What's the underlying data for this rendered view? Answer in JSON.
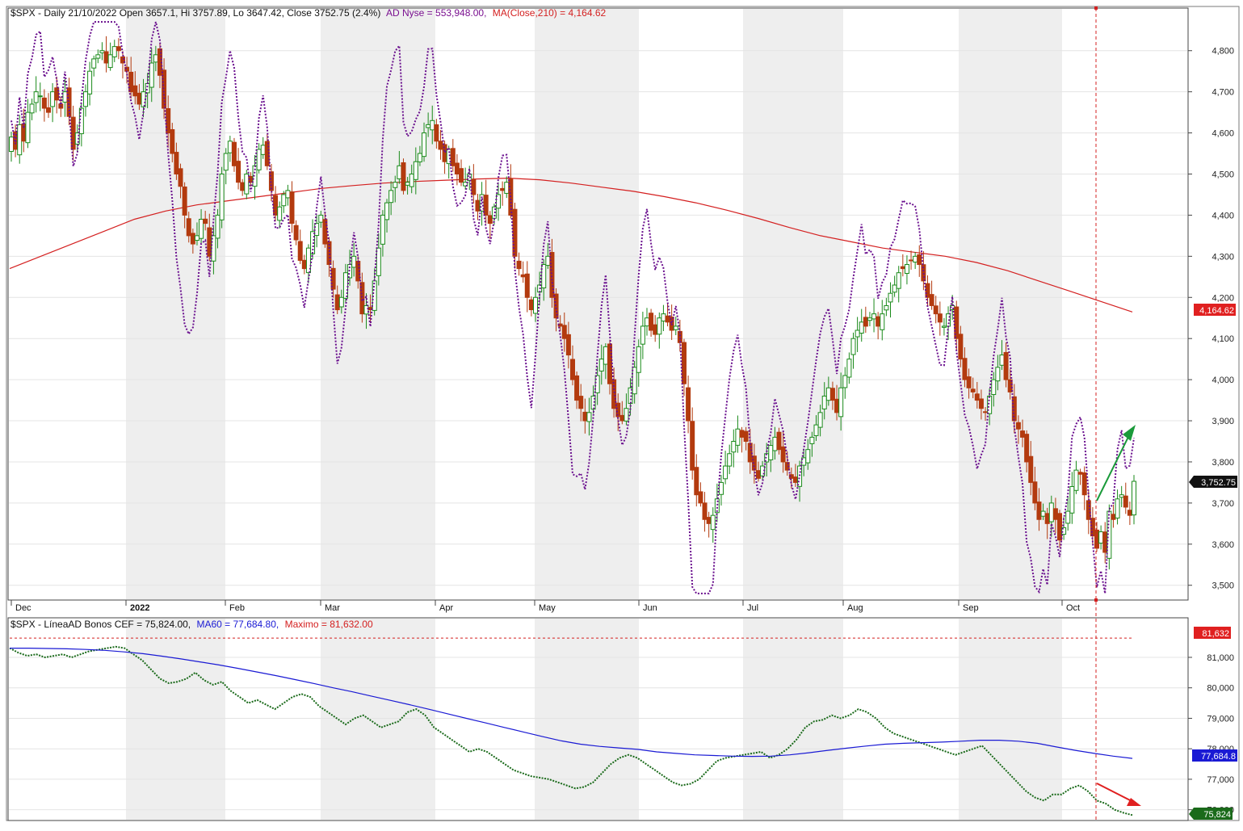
{
  "colors": {
    "up_candle": "#1a8a1a",
    "down_candle": "#b33a0e",
    "ad_line": "#6a0f8e",
    "ma210": "#d42020",
    "bonos_line": "#1a6a1a",
    "ma60": "#1a1ad4",
    "maximo": "#d42020",
    "price_tag": "#000000",
    "month_shade": "#eeeeee"
  },
  "upper_header": {
    "prefix": "$SPX - Daily 21/10/2022 Open 3657.1, Hi 3757.89, Lo 3647.42, Close 3752.75 (2.4%)",
    "ad": "AD Nyse = 553,948.00,",
    "ma": "MA(Close,210) = 4,164.62"
  },
  "lower_header": {
    "prefix": "$SPX - LíneaAD Bonos CEF = 75,824.00,",
    "ma60": "MA60 = 77,684.80,",
    "maximo": "Maximo = 81,632.00"
  },
  "chart_data": [
    {
      "type": "candlestick",
      "title": "$SPX - Daily 21/10/2022",
      "ylim": [
        3470,
        4880
      ],
      "y_ticks": [
        "3,500",
        "3,600",
        "3,700",
        "3,800",
        "3,900",
        "4,000",
        "4,100",
        "4,200",
        "4,300",
        "4,400",
        "4,500",
        "4,600",
        "4,700",
        "4,800"
      ],
      "y_tick_values": [
        3500,
        3600,
        3700,
        3800,
        3900,
        4000,
        4100,
        4200,
        4300,
        4400,
        4500,
        4600,
        4700,
        4800
      ],
      "x_labels": [
        "Dec",
        "2022",
        "Feb",
        "Mar",
        "Apr",
        "May",
        "Jun",
        "Jul",
        "Aug",
        "Sep",
        "Oct"
      ],
      "last_value_tags": {
        "close": "3,752.75",
        "ma210": "4,164.62"
      },
      "close_series": [
        4590,
        4560,
        4620,
        4580,
        4650,
        4670,
        4700,
        4690,
        4660,
        4650,
        4700,
        4680,
        4660,
        4700,
        4640,
        4560,
        4600,
        4660,
        4700,
        4750,
        4780,
        4790,
        4800,
        4770,
        4790,
        4810,
        4800,
        4770,
        4750,
        4700,
        4690,
        4670,
        4700,
        4720,
        4770,
        4790,
        4740,
        4660,
        4600,
        4550,
        4500,
        4470,
        4400,
        4350,
        4330,
        4350,
        4390,
        4380,
        4300,
        4350,
        4400,
        4500,
        4550,
        4580,
        4520,
        4480,
        4460,
        4500,
        4480,
        4520,
        4560,
        4570,
        4520,
        4460,
        4400,
        4420,
        4450,
        4460,
        4380,
        4340,
        4290,
        4270,
        4320,
        4360,
        4380,
        4400,
        4330,
        4280,
        4220,
        4170,
        4200,
        4260,
        4280,
        4300,
        4240,
        4160,
        4180,
        4170,
        4240,
        4320,
        4400,
        4430,
        4460,
        4480,
        4520,
        4460,
        4480,
        4500,
        4530,
        4550,
        4600,
        4620,
        4630,
        4580,
        4560,
        4530,
        4560,
        4520,
        4500,
        4480,
        4480,
        4500,
        4450,
        4410,
        4450,
        4400,
        4380,
        4420,
        4450,
        4460,
        4480,
        4400,
        4300,
        4270,
        4250,
        4200,
        4170,
        4200,
        4230,
        4280,
        4300,
        4200,
        4150,
        4130,
        4100,
        4060,
        4000,
        3950,
        3930,
        3900,
        3920,
        3960,
        4010,
        4050,
        4080,
        3990,
        3930,
        3910,
        3900,
        3930,
        3980,
        4030,
        4080,
        4130,
        4150,
        4120,
        4110,
        4150,
        4160,
        4140,
        4120,
        4130,
        4090,
        3990,
        3900,
        3780,
        3720,
        3700,
        3660,
        3650,
        3670,
        3710,
        3750,
        3790,
        3820,
        3850,
        3880,
        3860,
        3850,
        3800,
        3780,
        3760,
        3790,
        3820,
        3840,
        3860,
        3830,
        3800,
        3780,
        3760,
        3750,
        3790,
        3810,
        3830,
        3860,
        3890,
        3920,
        3960,
        3980,
        3950,
        3920,
        3980,
        4010,
        4050,
        4100,
        4120,
        4140,
        4130,
        4150,
        4160,
        4130,
        4160,
        4180,
        4210,
        4230,
        4260,
        4270,
        4280,
        4290,
        4300,
        4280,
        4240,
        4200,
        4180,
        4160,
        4140,
        4130,
        4160,
        4180,
        4100,
        4050,
        4000,
        3980,
        3970,
        3950,
        3930,
        3920,
        3960,
        4000,
        4030,
        4060,
        4000,
        3970,
        3900,
        3880,
        3860,
        3800,
        3750,
        3700,
        3660,
        3680,
        3650,
        3700,
        3660,
        3610,
        3640,
        3680,
        3740,
        3780,
        3770,
        3720,
        3660,
        3620,
        3590,
        3630,
        3580,
        3680,
        3660,
        3710,
        3720,
        3690,
        3670,
        3752.75
      ],
      "ad_nyse_series": "overlay — dotted line, right-hand portion values shown by shape only",
      "ma210_series": [
        4270,
        4300,
        4330,
        4360,
        4390,
        4410,
        4425,
        4435,
        4445,
        4455,
        4465,
        4472,
        4478,
        4482,
        4485,
        4488,
        4490,
        4486,
        4478,
        4468,
        4458,
        4445,
        4430,
        4412,
        4392,
        4370,
        4350,
        4335,
        4320,
        4310,
        4300,
        4285,
        4265,
        4240,
        4215,
        4190,
        4164.62
      ]
    },
    {
      "type": "line",
      "title": "$SPX - LíneaAD Bonos CEF",
      "ylim": [
        75700,
        81900
      ],
      "y_ticks": [
        "76,000",
        "77,000",
        "78,000",
        "79,000",
        "80,000",
        "81,000"
      ],
      "y_tick_values": [
        76000,
        77000,
        78000,
        79000,
        80000,
        81000
      ],
      "last_value_tags": {
        "bonos": "75,824",
        "ma60": "77,684.8",
        "maximo": "81,632"
      },
      "bonos_series": [
        81300,
        81150,
        81050,
        81100,
        81000,
        81050,
        81100,
        81000,
        81100,
        81200,
        81250,
        81300,
        81350,
        81300,
        81100,
        80900,
        80600,
        80300,
        80150,
        80200,
        80300,
        80500,
        80250,
        80100,
        80200,
        79900,
        79700,
        79500,
        79600,
        79450,
        79300,
        79500,
        79700,
        79800,
        79700,
        79400,
        79200,
        79000,
        78800,
        79000,
        79100,
        78900,
        78700,
        78800,
        78900,
        79200,
        79300,
        79100,
        78700,
        78500,
        78300,
        78100,
        77900,
        78000,
        77900,
        77700,
        77500,
        77300,
        77200,
        77100,
        77050,
        77000,
        76900,
        76800,
        76700,
        76750,
        76900,
        77200,
        77500,
        77700,
        77800,
        77700,
        77500,
        77300,
        77100,
        76900,
        76800,
        76850,
        77000,
        77300,
        77600,
        77700,
        77750,
        77800,
        77850,
        77900,
        77700,
        77800,
        78000,
        78300,
        78700,
        78900,
        78950,
        79100,
        79000,
        79100,
        79300,
        79200,
        79000,
        78700,
        78500,
        78400,
        78300,
        78200,
        78100,
        78000,
        77900,
        77800,
        77900,
        78000,
        78100,
        77800,
        77500,
        77200,
        76900,
        76600,
        76400,
        76300,
        76500,
        76500,
        76700,
        76800,
        76600,
        76300,
        76200,
        76000,
        75900,
        75824
      ],
      "ma60_series": [
        81300,
        81300,
        81290,
        81280,
        81260,
        81230,
        81180,
        81120,
        81040,
        80950,
        80850,
        80750,
        80640,
        80520,
        80400,
        80270,
        80140,
        80000,
        79870,
        79730,
        79590,
        79450,
        79300,
        79150,
        79000,
        78850,
        78700,
        78550,
        78400,
        78260,
        78150,
        78080,
        78030,
        77980,
        77900,
        77850,
        77800,
        77780,
        77760,
        77750,
        77760,
        77800,
        77870,
        77950,
        78020,
        78090,
        78150,
        78180,
        78200,
        78220,
        78250,
        78280,
        78280,
        78250,
        78180,
        78060,
        77950,
        77850,
        77760,
        77684.8
      ],
      "maximo": 81632
    }
  ]
}
